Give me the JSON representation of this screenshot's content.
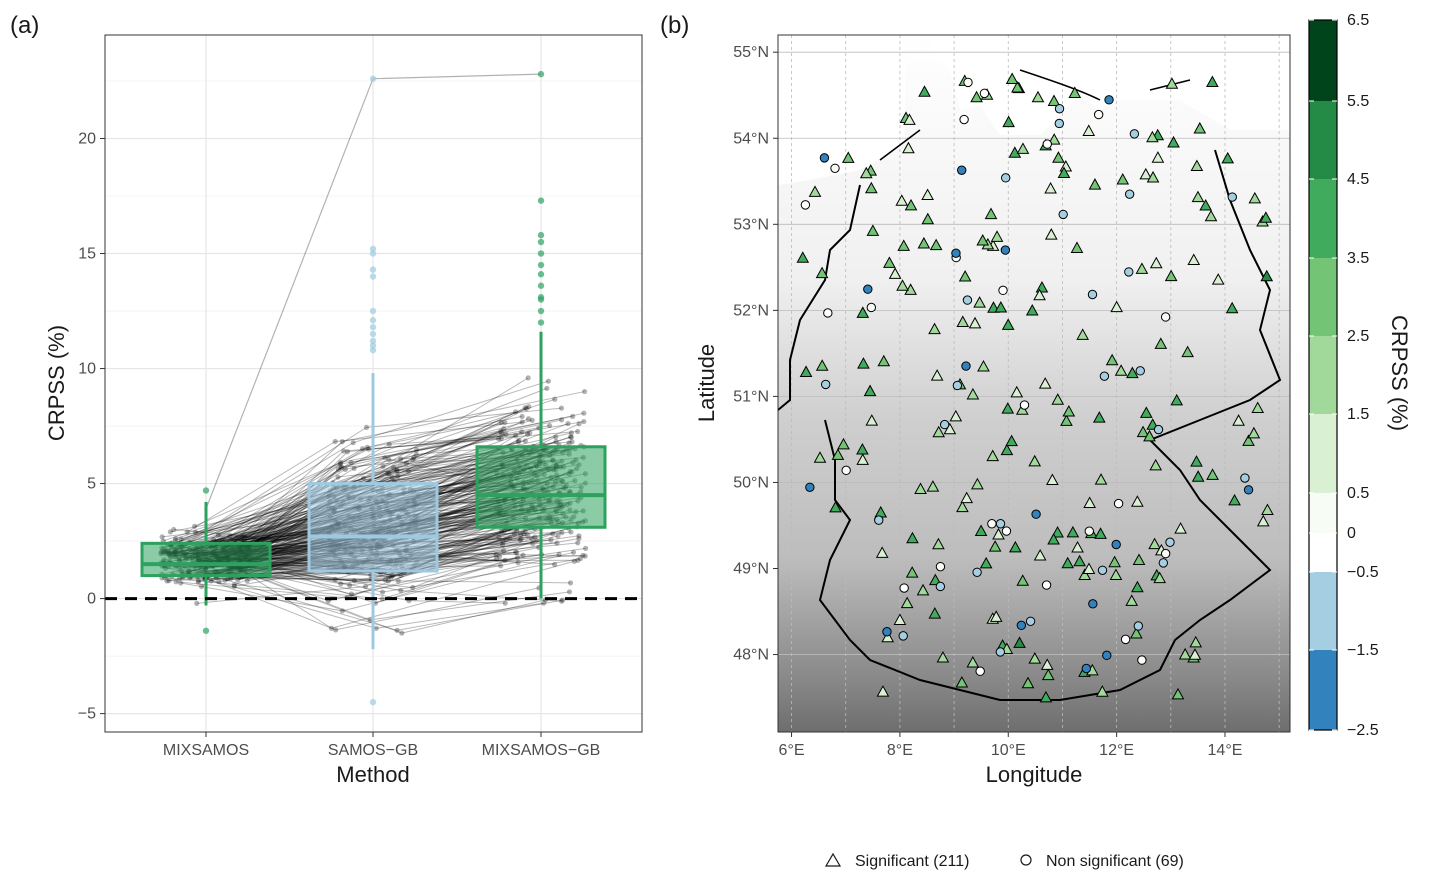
{
  "panel_a": {
    "label": "(a)",
    "xlabel": "Method",
    "ylabel": "CRPSS (%)",
    "yticks": [
      -5,
      0,
      5,
      10,
      15,
      20
    ],
    "ylim": [
      -5.8,
      24.5
    ],
    "categories": [
      "MIXSAMOS",
      "SAMOS−GB",
      "MIXSAMOS−GB"
    ],
    "reference_line": 0
  },
  "panel_b": {
    "label": "(b)",
    "xlabel": "Longitude",
    "ylabel": "Latitude",
    "xticks": [
      "6°E",
      "8°E",
      "10°E",
      "12°E",
      "14°E"
    ],
    "yticks": [
      "48°N",
      "49°N",
      "50°N",
      "51°N",
      "52°N",
      "53°N",
      "54°N",
      "55°N"
    ],
    "colorbar_title": "CRPSS (%)",
    "colorbar_ticks": [
      "6.5",
      "5.5",
      "4.5",
      "3.5",
      "2.5",
      "1.5",
      "0.5",
      "0",
      "−0.5",
      "−1.5",
      "−2.5"
    ]
  },
  "legend": {
    "significant": "Significant (211)",
    "non_significant": "Non significant (69)"
  },
  "colors": {
    "mixsamos": "#2ca25f",
    "samos_gb": "#9ecae1",
    "mixsamos_gb": "#2ca25f",
    "colorbar": [
      "#3182bd",
      "#a6cee3",
      "#ffffff",
      "#f7fcf5",
      "#d9f0d3",
      "#a1d99b",
      "#74c476",
      "#41ab5d",
      "#238b45",
      "#00441b"
    ]
  },
  "chart_data": [
    {
      "type": "box",
      "title": "",
      "xlabel": "Method",
      "ylabel": "CRPSS (%)",
      "ylim": [
        -5.8,
        24.5
      ],
      "series": [
        {
          "category": "MIXSAMOS",
          "whisker_low": -0.3,
          "q1": 1.0,
          "median": 1.5,
          "q3": 2.4,
          "whisker_high": 4.2,
          "outliers": [
            4.7,
            -1.4
          ],
          "n": 280
        },
        {
          "category": "SAMOS−GB",
          "whisker_low": -2.2,
          "q1": 1.2,
          "median": 2.7,
          "q3": 5.0,
          "whisker_high": 9.8,
          "outliers": [
            10.8,
            11.0,
            11.2,
            11.5,
            11.8,
            12.1,
            12.5,
            14.0,
            14.3,
            15.0,
            15.2,
            22.6,
            -4.5
          ],
          "n": 280
        },
        {
          "category": "MIXSAMOS−GB",
          "whisker_low": 0.0,
          "q1": 3.1,
          "median": 4.5,
          "q3": 6.6,
          "whisker_high": 11.6,
          "outliers": [
            12.0,
            12.5,
            13.0,
            13.1,
            13.6,
            14.1,
            14.5,
            15.0,
            15.5,
            15.8,
            17.3,
            22.8
          ],
          "n": 280
        }
      ],
      "paired_lines": "per-station connections between the three methods (280 stations)"
    },
    {
      "type": "scatter",
      "title": "",
      "xlabel": "Longitude",
      "ylabel": "Latitude",
      "xlim": [
        5.75,
        15.2
      ],
      "ylim": [
        47.1,
        55.2
      ],
      "marker_meaning": {
        "triangle": "Significant (211)",
        "circle": "Non significant (69)"
      },
      "color_scale": {
        "title": "CRPSS (%)",
        "breaks": [
          -2.5,
          -1.5,
          -0.5,
          0,
          0.5,
          1.5,
          2.5,
          3.5,
          4.5,
          5.5,
          6.5
        ]
      }
    }
  ]
}
